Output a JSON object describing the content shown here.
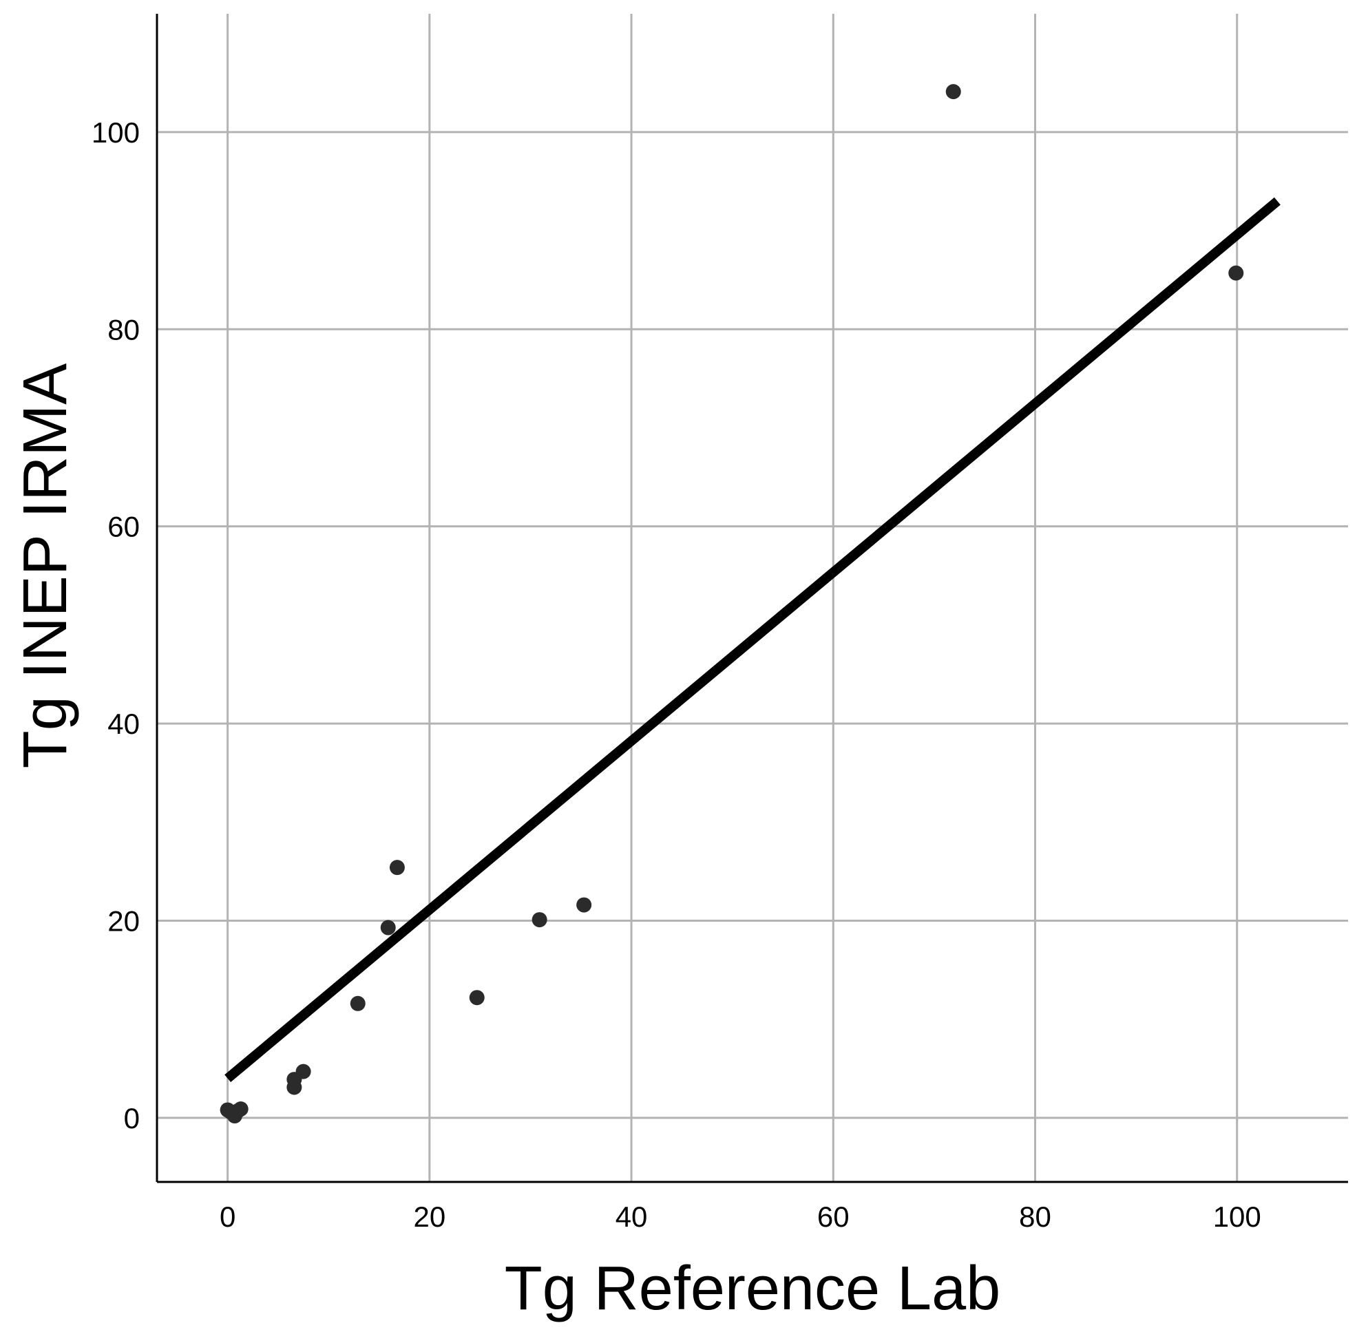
{
  "chart_data": {
    "type": "scatter",
    "title": "",
    "xlabel": "Tg Reference Lab",
    "ylabel": "Tg INEP IRMA",
    "xlim": [
      -7,
      111
    ],
    "ylim": [
      -6.5,
      112
    ],
    "x_ticks": [
      0,
      20,
      40,
      60,
      80,
      100
    ],
    "y_ticks": [
      0,
      20,
      40,
      60,
      80,
      100
    ],
    "grid": true,
    "series": [
      {
        "points": [
          {
            "x": 0.0,
            "y": 0.8
          },
          {
            "x": 0.3,
            "y": 0.6
          },
          {
            "x": 0.7,
            "y": 0.2
          },
          {
            "x": 1.0,
            "y": 0.7
          },
          {
            "x": 1.3,
            "y": 0.9
          },
          {
            "x": 6.6,
            "y": 3.1
          },
          {
            "x": 6.6,
            "y": 3.9
          },
          {
            "x": 7.5,
            "y": 4.7
          },
          {
            "x": 12.9,
            "y": 11.6
          },
          {
            "x": 15.9,
            "y": 19.3
          },
          {
            "x": 16.8,
            "y": 25.4
          },
          {
            "x": 24.7,
            "y": 12.2
          },
          {
            "x": 30.9,
            "y": 20.1
          },
          {
            "x": 35.3,
            "y": 21.6
          },
          {
            "x": 71.9,
            "y": 104.1
          },
          {
            "x": 99.9,
            "y": 85.7
          }
        ]
      }
    ],
    "fit_line": {
      "x": [
        0,
        104
      ],
      "y": [
        4.0,
        93.0
      ]
    }
  }
}
